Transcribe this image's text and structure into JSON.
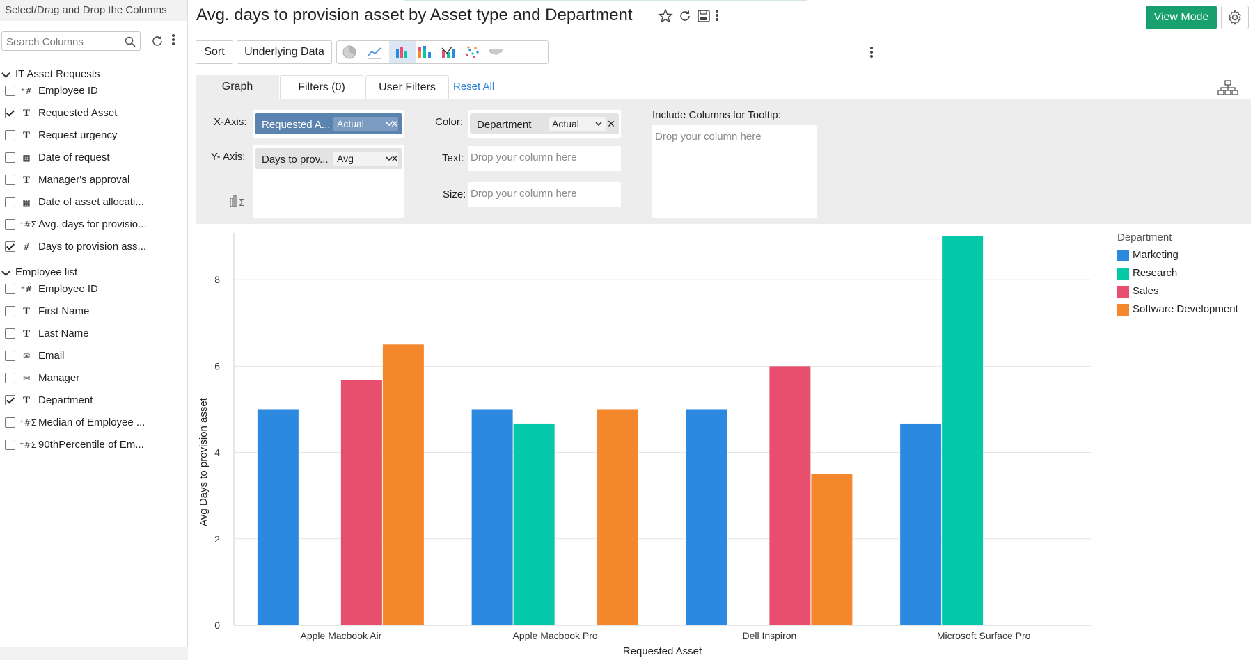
{
  "sidebar": {
    "header": "Select/Drag and Drop the Columns",
    "search_placeholder": "Search Columns",
    "groups": [
      {
        "title": "IT Asset Requests",
        "items": [
          {
            "label": "Employee ID",
            "type": "number-id",
            "checked": false
          },
          {
            "label": "Requested Asset",
            "type": "text",
            "checked": true
          },
          {
            "label": "Request urgency",
            "type": "text",
            "checked": false
          },
          {
            "label": "Date of request",
            "type": "date",
            "checked": false
          },
          {
            "label": "Manager's approval",
            "type": "text",
            "checked": false
          },
          {
            "label": "Date of asset allocati...",
            "type": "date",
            "checked": false
          },
          {
            "label": "Avg. days for provisio...",
            "type": "formula",
            "checked": false
          },
          {
            "label": "Days to provision ass...",
            "type": "number",
            "checked": true
          }
        ]
      },
      {
        "title": "Employee list",
        "items": [
          {
            "label": "Employee ID",
            "type": "number-id",
            "checked": false
          },
          {
            "label": "First Name",
            "type": "text",
            "checked": false
          },
          {
            "label": "Last Name",
            "type": "text",
            "checked": false
          },
          {
            "label": "Email",
            "type": "email",
            "checked": false
          },
          {
            "label": "Manager",
            "type": "email",
            "checked": false
          },
          {
            "label": "Department",
            "type": "text",
            "checked": true
          },
          {
            "label": "Median of Employee ...",
            "type": "formula",
            "checked": false
          },
          {
            "label": "90thPercentile of Em...",
            "type": "formula",
            "checked": false
          }
        ]
      }
    ]
  },
  "header": {
    "title": "Avg. days to provision asset by Asset type and Department",
    "view_mode_label": "View Mode"
  },
  "toolbar": {
    "sort_label": "Sort",
    "underlying_label": "Underlying Data",
    "chart_types": [
      "pie-chart-icon",
      "line-chart-icon",
      "bar-chart-icon",
      "stacked-bar-chart-icon",
      "combo-chart-icon",
      "scatter-chart-icon",
      "map-chart-icon"
    ],
    "active_chart_type": "bar-chart-icon"
  },
  "config": {
    "tabs": {
      "graph": "Graph",
      "filters": "Filters  (0)",
      "user_filters": "User Filters"
    },
    "reset_all": "Reset All",
    "x_axis_label": "X-Axis:",
    "y_axis_label": "Y- Axis:",
    "color_label": "Color:",
    "text_label": "Text:",
    "size_label": "Size:",
    "tooltip_label": "Include Columns for Tooltip:",
    "x_axis_field": "Requested A...",
    "x_axis_agg": "Actual",
    "y_axis_field": "Days to prov...",
    "y_axis_agg": "Avg",
    "color_field": "Department",
    "color_agg": "Actual",
    "drop_placeholder": "Drop your column here"
  },
  "chart_data": {
    "type": "bar",
    "xlabel": "Requested Asset",
    "ylabel": "Avg Days to provision asset",
    "ylim": [
      0,
      9
    ],
    "yticks": [
      0,
      2,
      4,
      6,
      8
    ],
    "legend_title": "Department",
    "legend_position": "right",
    "grid": true,
    "categories": [
      "Apple Macbook Air",
      "Apple Macbook Pro",
      "Dell Inspiron",
      "Microsoft Surface Pro"
    ],
    "series": [
      {
        "name": "Marketing",
        "color": "#2b8ae0",
        "values": [
          5,
          5,
          5,
          4.67
        ]
      },
      {
        "name": "Research",
        "color": "#03c9a9",
        "values": [
          null,
          4.67,
          null,
          9
        ]
      },
      {
        "name": "Sales",
        "color": "#e84f6e",
        "values": [
          5.67,
          null,
          6,
          null
        ]
      },
      {
        "name": "Software Development",
        "color": "#f5872c",
        "values": [
          6.5,
          5,
          3.5,
          null
        ]
      }
    ]
  }
}
